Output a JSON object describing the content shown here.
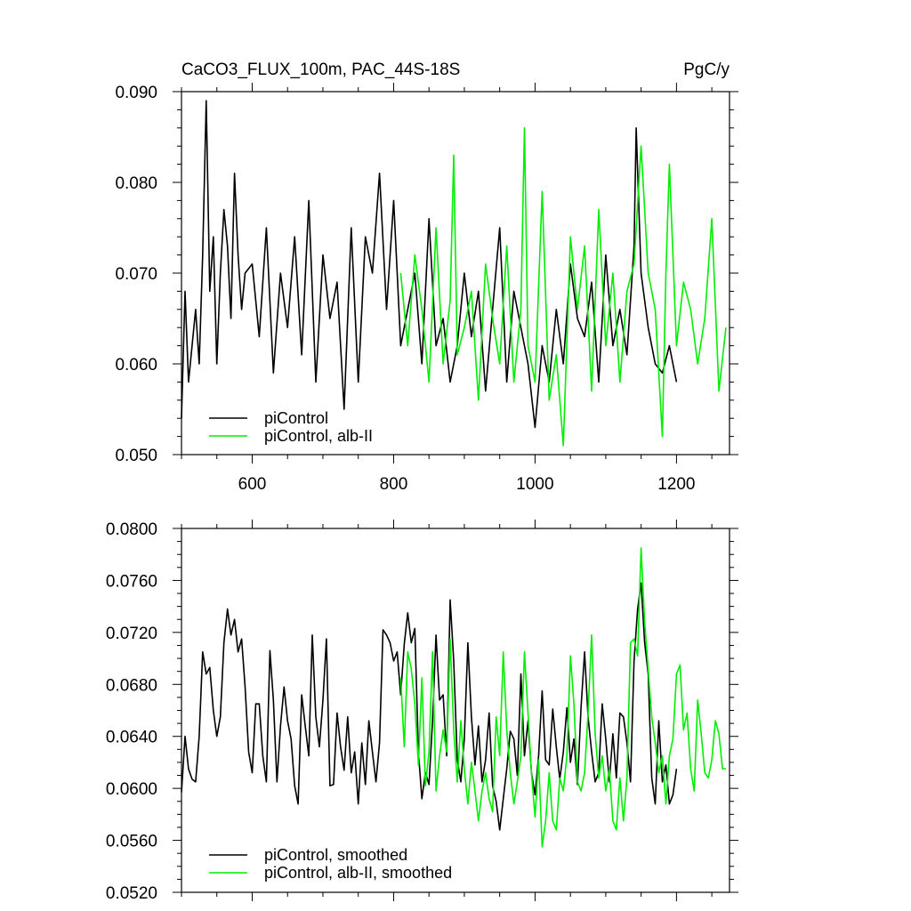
{
  "chart_data": [
    {
      "type": "line",
      "title": "CaCO3_FLUX_100m, PAC_44S-18S",
      "units": "PgC/y",
      "xlim": [
        500,
        1275
      ],
      "ylim": [
        0.05,
        0.09
      ],
      "xticks": [
        600,
        800,
        1000,
        1200
      ],
      "xtick_labels": [
        "600",
        "800",
        "1000",
        "1200"
      ],
      "yticks": [
        0.05,
        0.06,
        0.07,
        0.08,
        0.09
      ],
      "ytick_labels": [
        "0.050",
        "0.060",
        "0.070",
        "0.080",
        "0.090"
      ],
      "legend_position": "bottom-left",
      "grid": false,
      "series": [
        {
          "name": "piControl",
          "color": "#000000",
          "x": [
            500,
            505,
            510,
            515,
            520,
            525,
            530,
            535,
            540,
            545,
            550,
            555,
            560,
            565,
            570,
            575,
            580,
            585,
            590,
            600,
            610,
            620,
            630,
            640,
            650,
            660,
            670,
            680,
            690,
            700,
            710,
            720,
            730,
            740,
            750,
            760,
            770,
            780,
            790,
            800,
            810,
            820,
            830,
            840,
            850,
            860,
            870,
            880,
            890,
            900,
            910,
            920,
            930,
            940,
            950,
            960,
            970,
            980,
            990,
            1000,
            1010,
            1020,
            1030,
            1040,
            1050,
            1060,
            1070,
            1080,
            1090,
            1100,
            1110,
            1120,
            1130,
            1140,
            1143,
            1150,
            1160,
            1170,
            1180,
            1190,
            1200
          ],
          "y": [
            0.054,
            0.068,
            0.058,
            0.062,
            0.066,
            0.06,
            0.072,
            0.089,
            0.068,
            0.074,
            0.06,
            0.07,
            0.077,
            0.073,
            0.065,
            0.081,
            0.072,
            0.066,
            0.07,
            0.071,
            0.063,
            0.075,
            0.059,
            0.07,
            0.064,
            0.074,
            0.061,
            0.078,
            0.058,
            0.072,
            0.065,
            0.069,
            0.055,
            0.075,
            0.058,
            0.074,
            0.07,
            0.081,
            0.066,
            0.078,
            0.062,
            0.066,
            0.07,
            0.06,
            0.076,
            0.062,
            0.065,
            0.058,
            0.062,
            0.07,
            0.063,
            0.068,
            0.057,
            0.066,
            0.075,
            0.058,
            0.068,
            0.064,
            0.06,
            0.053,
            0.062,
            0.058,
            0.066,
            0.06,
            0.071,
            0.065,
            0.063,
            0.069,
            0.058,
            0.072,
            0.062,
            0.066,
            0.061,
            0.073,
            0.086,
            0.07,
            0.064,
            0.06,
            0.059,
            0.062,
            0.058
          ]
        },
        {
          "name": "piControl, alb-II",
          "color": "#00ee00",
          "x": [
            810,
            820,
            830,
            840,
            850,
            860,
            870,
            880,
            885,
            890,
            900,
            910,
            920,
            930,
            940,
            950,
            960,
            970,
            980,
            985,
            990,
            1000,
            1010,
            1020,
            1030,
            1040,
            1050,
            1060,
            1070,
            1080,
            1090,
            1100,
            1110,
            1120,
            1130,
            1140,
            1150,
            1160,
            1170,
            1180,
            1185,
            1190,
            1200,
            1210,
            1220,
            1230,
            1240,
            1250,
            1260,
            1270
          ],
          "y": [
            0.07,
            0.062,
            0.072,
            0.066,
            0.058,
            0.075,
            0.06,
            0.067,
            0.083,
            0.061,
            0.064,
            0.068,
            0.056,
            0.071,
            0.065,
            0.06,
            0.073,
            0.058,
            0.066,
            0.086,
            0.062,
            0.058,
            0.079,
            0.056,
            0.061,
            0.051,
            0.074,
            0.066,
            0.073,
            0.057,
            0.077,
            0.062,
            0.07,
            0.058,
            0.068,
            0.071,
            0.084,
            0.07,
            0.066,
            0.052,
            0.07,
            0.082,
            0.062,
            0.069,
            0.066,
            0.06,
            0.065,
            0.076,
            0.057,
            0.064
          ]
        }
      ]
    },
    {
      "type": "line",
      "xlim": [
        500,
        1275
      ],
      "ylim": [
        0.052,
        0.08
      ],
      "xticks": [
        600,
        800,
        1000,
        1200
      ],
      "yticks": [
        0.052,
        0.056,
        0.06,
        0.064,
        0.068,
        0.072,
        0.076,
        0.08
      ],
      "ytick_labels": [
        "0.0520",
        "0.0560",
        "0.0600",
        "0.0640",
        "0.0680",
        "0.0720",
        "0.0760",
        "0.0800"
      ],
      "legend_position": "bottom-left",
      "grid": false,
      "series": [
        {
          "name": "piControl, smoothed",
          "color": "#000000",
          "x": [
            500,
            505,
            510,
            515,
            520,
            525,
            530,
            535,
            540,
            545,
            550,
            555,
            560,
            565,
            570,
            575,
            580,
            585,
            590,
            595,
            600,
            605,
            610,
            615,
            620,
            625,
            630,
            635,
            640,
            645,
            650,
            655,
            660,
            665,
            670,
            675,
            680,
            685,
            690,
            695,
            700,
            705,
            710,
            715,
            720,
            725,
            730,
            735,
            740,
            745,
            750,
            755,
            760,
            765,
            770,
            775,
            780,
            785,
            790,
            795,
            800,
            805,
            810,
            815,
            820,
            825,
            830,
            835,
            840,
            845,
            850,
            855,
            860,
            865,
            870,
            875,
            880,
            885,
            890,
            895,
            900,
            905,
            910,
            915,
            920,
            925,
            930,
            935,
            940,
            945,
            950,
            955,
            960,
            965,
            970,
            975,
            980,
            985,
            990,
            995,
            1000,
            1005,
            1010,
            1015,
            1020,
            1025,
            1030,
            1035,
            1040,
            1045,
            1050,
            1055,
            1060,
            1065,
            1070,
            1075,
            1080,
            1085,
            1090,
            1095,
            1100,
            1105,
            1110,
            1115,
            1120,
            1125,
            1130,
            1135,
            1140,
            1145,
            1150,
            1155,
            1160,
            1165,
            1170,
            1175,
            1180,
            1185,
            1190,
            1195,
            1200
          ],
          "y": [
            0.0597,
            0.064,
            0.0615,
            0.0607,
            0.0605,
            0.064,
            0.0705,
            0.0688,
            0.0693,
            0.066,
            0.064,
            0.0655,
            0.0712,
            0.0738,
            0.0718,
            0.073,
            0.0705,
            0.0715,
            0.0678,
            0.0628,
            0.0612,
            0.0665,
            0.0665,
            0.0625,
            0.0605,
            0.0706,
            0.0668,
            0.0605,
            0.0648,
            0.0678,
            0.0652,
            0.0638,
            0.0602,
            0.0588,
            0.0672,
            0.0648,
            0.0625,
            0.0718,
            0.0655,
            0.0632,
            0.0668,
            0.0715,
            0.0602,
            0.0603,
            0.0658,
            0.0632,
            0.0614,
            0.0655,
            0.0612,
            0.0628,
            0.0588,
            0.0635,
            0.0603,
            0.0652,
            0.0628,
            0.0605,
            0.0635,
            0.0722,
            0.0718,
            0.0712,
            0.0698,
            0.0705,
            0.0672,
            0.0711,
            0.0735,
            0.0712,
            0.0723,
            0.0628,
            0.0592,
            0.0612,
            0.0603,
            0.0652,
            0.0718,
            0.0668,
            0.0672,
            0.0625,
            0.0745,
            0.0698,
            0.0622,
            0.0605,
            0.0638,
            0.0712,
            0.0655,
            0.0618,
            0.0648,
            0.0605,
            0.0622,
            0.0658,
            0.0602,
            0.059,
            0.0568,
            0.0592,
            0.0615,
            0.0644,
            0.0638,
            0.061,
            0.0688,
            0.0625,
            0.0652,
            0.0612,
            0.0595,
            0.0625,
            0.0675,
            0.0622,
            0.0618,
            0.0661,
            0.0632,
            0.0607,
            0.0628,
            0.0662,
            0.062,
            0.0638,
            0.0603,
            0.0662,
            0.0705,
            0.0655,
            0.0628,
            0.0605,
            0.0612,
            0.0665,
            0.0638,
            0.0605,
            0.0642,
            0.0608,
            0.0658,
            0.0655,
            0.0635,
            0.0605,
            0.0698,
            0.0738,
            0.0758,
            0.0712,
            0.0688,
            0.0608,
            0.0588,
            0.0652,
            0.0605,
            0.0618,
            0.0588,
            0.0595,
            0.0615
          ]
        },
        {
          "name": "piControl, alb-II, smoothed",
          "color": "#00ee00",
          "x": [
            810,
            815,
            820,
            825,
            830,
            835,
            840,
            845,
            850,
            855,
            860,
            865,
            870,
            875,
            880,
            885,
            890,
            895,
            900,
            905,
            910,
            915,
            920,
            925,
            930,
            935,
            940,
            945,
            950,
            955,
            960,
            965,
            970,
            975,
            980,
            985,
            990,
            995,
            1000,
            1005,
            1010,
            1015,
            1020,
            1025,
            1030,
            1035,
            1040,
            1045,
            1050,
            1055,
            1060,
            1065,
            1070,
            1075,
            1080,
            1085,
            1090,
            1095,
            1100,
            1105,
            1110,
            1115,
            1120,
            1125,
            1130,
            1135,
            1140,
            1145,
            1150,
            1155,
            1160,
            1165,
            1170,
            1175,
            1180,
            1185,
            1190,
            1195,
            1200,
            1205,
            1210,
            1215,
            1220,
            1225,
            1230,
            1235,
            1240,
            1245,
            1250,
            1255,
            1260,
            1265,
            1270
          ],
          "y": [
            0.0685,
            0.0632,
            0.0705,
            0.0692,
            0.0665,
            0.0618,
            0.0685,
            0.0602,
            0.0628,
            0.0705,
            0.0598,
            0.0625,
            0.0645,
            0.0628,
            0.0715,
            0.0645,
            0.0605,
            0.0652,
            0.0615,
            0.0588,
            0.062,
            0.0598,
            0.0575,
            0.0598,
            0.0612,
            0.0592,
            0.0582,
            0.0655,
            0.0625,
            0.0705,
            0.0645,
            0.0612,
            0.0588,
            0.0605,
            0.0625,
            0.0705,
            0.0658,
            0.0612,
            0.0578,
            0.0622,
            0.0555,
            0.0575,
            0.0612,
            0.0575,
            0.0568,
            0.0608,
            0.0598,
            0.0625,
            0.0702,
            0.0665,
            0.0605,
            0.0598,
            0.0612,
            0.0658,
            0.0718,
            0.0642,
            0.0608,
            0.0625,
            0.0598,
            0.0615,
            0.0575,
            0.0568,
            0.0608,
            0.0575,
            0.0608,
            0.0712,
            0.0715,
            0.0702,
            0.0785,
            0.0728,
            0.0692,
            0.0655,
            0.0635,
            0.0612,
            0.0625,
            0.0588,
            0.0625,
            0.0638,
            0.0688,
            0.0695,
            0.0645,
            0.0658,
            0.0615,
            0.0598,
            0.0668,
            0.0642,
            0.0612,
            0.0608,
            0.0622,
            0.0652,
            0.0642,
            0.0615,
            0.0615
          ]
        }
      ]
    }
  ]
}
